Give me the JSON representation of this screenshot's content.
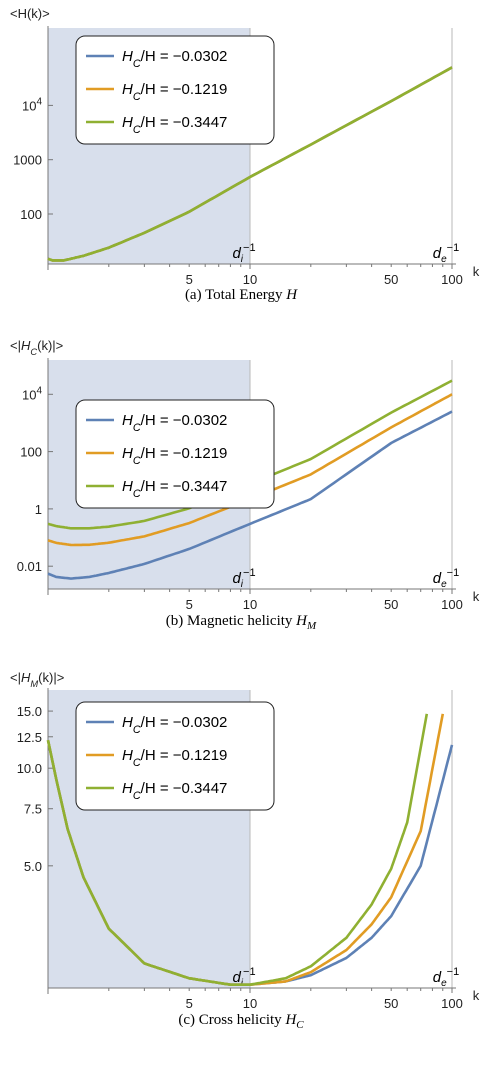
{
  "chart_data": [
    {
      "type": "line",
      "panel_key": "a",
      "ylabel": "<H(k)>",
      "xlabel": "k",
      "caption": "(a) Total Energy H",
      "xscale": "log",
      "yscale": "log",
      "xlim": [
        1,
        100
      ],
      "ylim": [
        12,
        160000
      ],
      "xticks": [
        {
          "v": 5,
          "label": "5"
        },
        {
          "v": 10,
          "label": "10"
        },
        {
          "v": 50,
          "label": "50"
        },
        {
          "v": 100,
          "label": "100"
        }
      ],
      "yticks": [
        {
          "v": 100,
          "label": "100",
          "sup": ""
        },
        {
          "v": 1000,
          "label": "1000",
          "sup": ""
        },
        {
          "v": 10000,
          "label": "10",
          "sup": "4"
        }
      ],
      "shaded_region": [
        1,
        10
      ],
      "markers": [
        {
          "x": 10,
          "label": "d",
          "sub": "i",
          "sup": "−1"
        },
        {
          "x": 100,
          "label": "d",
          "sub": "e",
          "sup": "−1"
        }
      ],
      "legend": {
        "position": "top-left"
      },
      "colors": [
        "#5e81b5",
        "#e19c24",
        "#8fb032"
      ],
      "series": [
        {
          "name": "H_C/H = −0.0302",
          "x": [
            1,
            1.05,
            1.2,
            1.5,
            2,
            3,
            5,
            10,
            20,
            50,
            100
          ],
          "y": [
            15,
            14,
            14,
            17,
            24,
            45,
            110,
            480,
            1900,
            12000,
            50000
          ]
        },
        {
          "name": "H_C/H = −0.1219",
          "x": [
            1,
            1.05,
            1.2,
            1.5,
            2,
            3,
            5,
            10,
            20,
            50,
            100
          ],
          "y": [
            15,
            14,
            14,
            17,
            24,
            45,
            110,
            480,
            1900,
            12000,
            50000
          ]
        },
        {
          "name": "H_C/H = −0.3447",
          "x": [
            1,
            1.05,
            1.2,
            1.5,
            2,
            3,
            5,
            10,
            20,
            50,
            100
          ],
          "y": [
            15,
            14,
            14,
            17,
            24,
            45,
            110,
            480,
            1900,
            12000,
            50000
          ]
        }
      ]
    },
    {
      "type": "line",
      "panel_key": "b",
      "ylabel": "<|H_C(k)|>",
      "xlabel": "k",
      "caption": "(b) Magnetic helicity H_M",
      "xscale": "log",
      "yscale": "log",
      "xlim": [
        1,
        100
      ],
      "ylim": [
        0.0016,
        60000
      ],
      "xticks": [
        {
          "v": 5,
          "label": "5"
        },
        {
          "v": 10,
          "label": "10"
        },
        {
          "v": 50,
          "label": "50"
        },
        {
          "v": 100,
          "label": "100"
        }
      ],
      "yticks": [
        {
          "v": 0.01,
          "label": "0.01",
          "sup": ""
        },
        {
          "v": 1,
          "label": "1",
          "sup": ""
        },
        {
          "v": 100,
          "label": "100",
          "sup": ""
        },
        {
          "v": 10000,
          "label": "10",
          "sup": "4"
        }
      ],
      "shaded_region": [
        1,
        10
      ],
      "markers": [
        {
          "x": 10,
          "label": "d",
          "sub": "i",
          "sup": "−1"
        },
        {
          "x": 100,
          "label": "d",
          "sub": "e",
          "sup": "−1"
        }
      ],
      "legend": {
        "position": "top-left"
      },
      "colors": [
        "#5e81b5",
        "#e19c24",
        "#8fb032"
      ],
      "series": [
        {
          "name": "H_C/H = −0.0302",
          "x": [
            1,
            1.1,
            1.3,
            1.6,
            2,
            3,
            5,
            10,
            20,
            50,
            100
          ],
          "y": [
            0.0055,
            0.0042,
            0.0037,
            0.0042,
            0.0058,
            0.012,
            0.04,
            0.3,
            2.2,
            200,
            2500
          ]
        },
        {
          "name": "H_C/H = −0.1219",
          "x": [
            1,
            1.1,
            1.3,
            1.6,
            2,
            3,
            5,
            10,
            20,
            50,
            100
          ],
          "y": [
            0.08,
            0.065,
            0.055,
            0.056,
            0.066,
            0.11,
            0.32,
            2.2,
            16,
            700,
            10000
          ]
        },
        {
          "name": "H_C/H = −0.3447",
          "x": [
            1,
            1.1,
            1.3,
            1.6,
            2,
            3,
            5,
            10,
            20,
            50,
            100
          ],
          "y": [
            0.3,
            0.25,
            0.21,
            0.21,
            0.24,
            0.38,
            1.05,
            7.5,
            55,
            2300,
            30000
          ]
        }
      ]
    },
    {
      "type": "line",
      "panel_key": "c",
      "ylabel": "<|H_M(k)|>",
      "xlabel": "k",
      "caption": "(c) Cross helicity H_C",
      "xscale": "log",
      "yscale": "log",
      "xlim": [
        1,
        100
      ],
      "ylim": [
        2.1,
        16
      ],
      "xticks": [
        {
          "v": 5,
          "label": "5"
        },
        {
          "v": 10,
          "label": "10"
        },
        {
          "v": 50,
          "label": "50"
        },
        {
          "v": 100,
          "label": "100"
        }
      ],
      "yticks": [
        {
          "v": 5,
          "label": "5.0",
          "sup": ""
        },
        {
          "v": 7.5,
          "label": "7.5",
          "sup": ""
        },
        {
          "v": 10,
          "label": "10.0",
          "sup": ""
        },
        {
          "v": 12.5,
          "label": "12.5",
          "sup": ""
        },
        {
          "v": 15,
          "label": "15.0",
          "sup": ""
        }
      ],
      "shaded_region": [
        1,
        10
      ],
      "markers": [
        {
          "x": 10,
          "label": "d",
          "sub": "i",
          "sup": "−1"
        },
        {
          "x": 100,
          "label": "d",
          "sub": "e",
          "sup": "−1"
        }
      ],
      "legend": {
        "position": "top-left"
      },
      "colors": [
        "#5e81b5",
        "#e19c24",
        "#8fb032"
      ],
      "series": [
        {
          "name": "H_C/H = −0.0302",
          "x": [
            1,
            1.1,
            1.25,
            1.5,
            2,
            3,
            5,
            8,
            10,
            15,
            20,
            30,
            40,
            50,
            70,
            100
          ],
          "y": [
            12.2,
            9.2,
            6.5,
            4.6,
            3.2,
            2.5,
            2.25,
            2.15,
            2.15,
            2.2,
            2.3,
            2.6,
            3.0,
            3.5,
            5.0,
            11.8
          ]
        },
        {
          "name": "H_C/H = −0.1219",
          "x": [
            1,
            1.1,
            1.25,
            1.5,
            2,
            3,
            5,
            8,
            10,
            15,
            20,
            30,
            40,
            50,
            70,
            90
          ],
          "y": [
            12.2,
            9.2,
            6.5,
            4.6,
            3.2,
            2.5,
            2.25,
            2.15,
            2.15,
            2.2,
            2.35,
            2.75,
            3.3,
            4.0,
            6.4,
            14.7
          ]
        },
        {
          "name": "H_C/H = −0.3447",
          "x": [
            1,
            1.1,
            1.25,
            1.5,
            2,
            3,
            5,
            8,
            10,
            15,
            20,
            30,
            40,
            50,
            60,
            75
          ],
          "y": [
            12.2,
            9.2,
            6.5,
            4.6,
            3.2,
            2.5,
            2.25,
            2.15,
            2.15,
            2.25,
            2.45,
            3.0,
            3.8,
            4.9,
            6.8,
            14.7
          ]
        }
      ]
    }
  ]
}
